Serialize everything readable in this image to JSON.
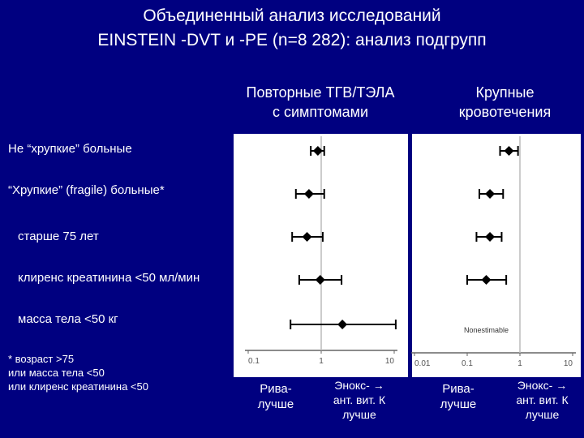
{
  "title": {
    "line1": "Объединенный анализ исследований",
    "line2": "EINSTEIN -DVT и -PE (n=8 282): анализ подгрупп"
  },
  "columns": {
    "left": [
      "Повторные ТГВ/ТЭЛА",
      "с симптомами"
    ],
    "right": [
      "Крупные",
      "кровотечения"
    ]
  },
  "rows": [
    "Не “хрупкие” больные",
    "“Хрупкие” (fragile) больные*",
    "старше 75 лет",
    "клиренс креатинина <50 мл/мин",
    "масса тела <50 кг"
  ],
  "footnote": [
    "* возраст >75",
    "или масса тела <50",
    "или клиренс креатинина <50"
  ],
  "axis_labels": {
    "left_favors_riva": [
      "Рива-",
      "лучше"
    ],
    "left_favors_enox": [
      "Энокс- →",
      "ант. вит. К",
      "лучше"
    ],
    "right_favors_riva": [
      "Рива-",
      "лучше"
    ],
    "right_favors_enox": [
      "Энокс- →",
      "ант. вит. К",
      "лучше"
    ]
  },
  "chart_data": [
    {
      "type": "scatter",
      "title": "Повторные ТГВ/ТЭЛА с симптомами",
      "scale": "log",
      "xlim": [
        0.1,
        10
      ],
      "ticks": [
        "0.1",
        "1",
        "10"
      ],
      "reference_line": 1,
      "categories": [
        "Не “хрупкие” больные",
        "“Хрупкие” (fragile) больные*",
        "старше 75 лет",
        "клиренс креатинина <50 мл/мин",
        "масса тела <50 кг"
      ],
      "points": [
        {
          "est": 0.9,
          "lo": 0.72,
          "hi": 1.1
        },
        {
          "est": 0.68,
          "lo": 0.45,
          "hi": 1.1
        },
        {
          "est": 0.64,
          "lo": 0.4,
          "hi": 1.05
        },
        {
          "est": 0.97,
          "lo": 0.5,
          "hi": 1.9
        },
        {
          "est": 1.95,
          "lo": 0.38,
          "hi": 10.5
        }
      ]
    },
    {
      "type": "scatter",
      "title": "Крупные кровотечения",
      "scale": "log",
      "xlim": [
        0.01,
        10
      ],
      "ticks": [
        "0.01",
        "0.1",
        "1",
        "10"
      ],
      "reference_line": 1,
      "categories": [
        "Не “хрупкие” больные",
        "“Хрупкие” (fragile) больные*",
        "старше 75 лет",
        "клиренс креатинина <50 мл/мин",
        "масса тела <50 кг"
      ],
      "points": [
        {
          "est": 0.62,
          "lo": 0.42,
          "hi": 0.92
        },
        {
          "est": 0.27,
          "lo": 0.17,
          "hi": 0.48
        },
        {
          "est": 0.27,
          "lo": 0.15,
          "hi": 0.45
        },
        {
          "est": 0.23,
          "lo": 0.1,
          "hi": 0.55
        },
        {
          "est": null,
          "note": "Nonestimable"
        }
      ]
    }
  ]
}
